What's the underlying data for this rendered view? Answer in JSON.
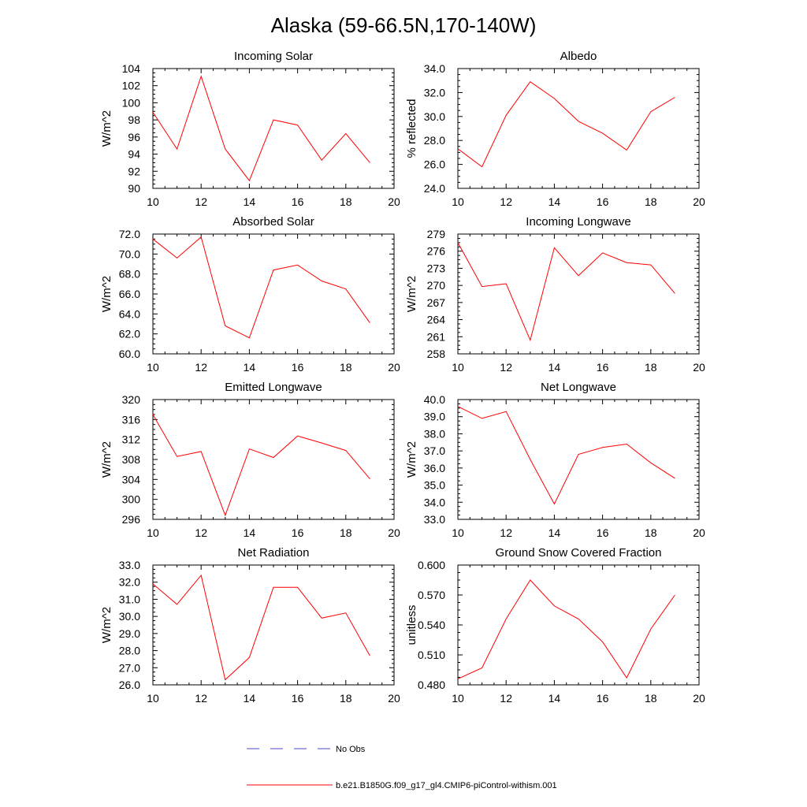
{
  "figure": {
    "title": "Alaska (59-66.5N,170-140W)"
  },
  "legend": {
    "items": [
      {
        "label": "No Obs",
        "color": "#4a4acd",
        "dash": true
      },
      {
        "label": "b.e21.B1850G.f09_g17_gl4.CMIP6-piControl-withism.001",
        "color": "#ff0000",
        "dash": false
      }
    ]
  },
  "chart_data": [
    {
      "type": "line",
      "title": "Incoming Solar",
      "xlabel": "",
      "ylabel": "W/m^2",
      "xlim": [
        10,
        20
      ],
      "ylim": [
        90,
        104
      ],
      "xticks": [
        "10",
        "12",
        "14",
        "16",
        "18",
        "20"
      ],
      "yticks": [
        "90",
        "92",
        "94",
        "96",
        "98",
        "100",
        "102",
        "104"
      ],
      "series": [
        {
          "color": "#ff0000",
          "x": [
            10,
            11,
            12,
            13,
            14,
            15,
            16,
            17,
            18,
            19
          ],
          "y": [
            98.9,
            94.6,
            103.1,
            94.6,
            90.9,
            98.0,
            97.4,
            93.3,
            96.4,
            93.0
          ]
        }
      ]
    },
    {
      "type": "line",
      "title": "Albedo",
      "xlabel": "",
      "ylabel": "% reflected",
      "xlim": [
        10,
        20
      ],
      "ylim": [
        24,
        34
      ],
      "xticks": [
        "10",
        "12",
        "14",
        "16",
        "18",
        "20"
      ],
      "yticks": [
        "24.0",
        "26.0",
        "28.0",
        "30.0",
        "32.0",
        "34.0"
      ],
      "series": [
        {
          "color": "#ff0000",
          "x": [
            10,
            11,
            12,
            13,
            14,
            15,
            16,
            17,
            18,
            19
          ],
          "y": [
            27.3,
            25.8,
            30.1,
            32.9,
            31.5,
            29.6,
            28.6,
            27.2,
            30.4,
            31.6
          ]
        }
      ]
    },
    {
      "type": "line",
      "title": "Absorbed Solar",
      "xlabel": "",
      "ylabel": "W/m^2",
      "xlim": [
        10,
        20
      ],
      "ylim": [
        60,
        72
      ],
      "xticks": [
        "10",
        "12",
        "14",
        "16",
        "18",
        "20"
      ],
      "yticks": [
        "60.0",
        "62.0",
        "64.0",
        "66.0",
        "68.0",
        "70.0",
        "72.0"
      ],
      "series": [
        {
          "color": "#ff0000",
          "x": [
            10,
            11,
            12,
            13,
            14,
            15,
            16,
            17,
            18,
            19
          ],
          "y": [
            71.5,
            69.6,
            71.7,
            62.8,
            61.6,
            68.4,
            68.9,
            67.3,
            66.5,
            63.1
          ]
        }
      ]
    },
    {
      "type": "line",
      "title": "Incoming Longwave",
      "xlabel": "",
      "ylabel": "W/m^2",
      "xlim": [
        10,
        20
      ],
      "ylim": [
        258,
        279
      ],
      "xticks": [
        "10",
        "12",
        "14",
        "16",
        "18",
        "20"
      ],
      "yticks": [
        "258",
        "261",
        "264",
        "267",
        "270",
        "273",
        "276",
        "279"
      ],
      "series": [
        {
          "color": "#ff0000",
          "x": [
            10,
            11,
            12,
            13,
            14,
            15,
            16,
            17,
            18,
            19
          ],
          "y": [
            277.5,
            269.8,
            270.3,
            260.4,
            276.6,
            271.7,
            275.7,
            274.0,
            273.6,
            268.6
          ]
        }
      ]
    },
    {
      "type": "line",
      "title": "Emitted Longwave",
      "xlabel": "",
      "ylabel": "W/m^2",
      "xlim": [
        10,
        20
      ],
      "ylim": [
        296,
        320
      ],
      "xticks": [
        "10",
        "12",
        "14",
        "16",
        "18",
        "20"
      ],
      "yticks": [
        "296",
        "300",
        "304",
        "308",
        "312",
        "316",
        "320"
      ],
      "series": [
        {
          "color": "#ff0000",
          "x": [
            10,
            11,
            12,
            13,
            14,
            15,
            16,
            17,
            18,
            19
          ],
          "y": [
            317.0,
            308.6,
            309.6,
            296.8,
            310.1,
            308.4,
            312.7,
            311.3,
            309.8,
            304.1
          ]
        }
      ]
    },
    {
      "type": "line",
      "title": "Net Longwave",
      "xlabel": "",
      "ylabel": "W/m^2",
      "xlim": [
        10,
        20
      ],
      "ylim": [
        33,
        40
      ],
      "xticks": [
        "10",
        "12",
        "14",
        "16",
        "18",
        "20"
      ],
      "yticks": [
        "33.0",
        "34.0",
        "35.0",
        "36.0",
        "37.0",
        "38.0",
        "39.0",
        "40.0"
      ],
      "series": [
        {
          "color": "#ff0000",
          "x": [
            10,
            11,
            12,
            13,
            14,
            15,
            16,
            17,
            18,
            19
          ],
          "y": [
            39.6,
            38.9,
            39.3,
            36.5,
            33.9,
            36.8,
            37.2,
            37.4,
            36.3,
            35.4
          ]
        }
      ]
    },
    {
      "type": "line",
      "title": "Net Radiation",
      "xlabel": "",
      "ylabel": "W/m^2",
      "xlim": [
        10,
        20
      ],
      "ylim": [
        26,
        33
      ],
      "xticks": [
        "10",
        "12",
        "14",
        "16",
        "18",
        "20"
      ],
      "yticks": [
        "26.0",
        "27.0",
        "28.0",
        "29.0",
        "30.0",
        "31.0",
        "32.0",
        "33.0"
      ],
      "series": [
        {
          "color": "#ff0000",
          "x": [
            10,
            11,
            12,
            13,
            14,
            15,
            16,
            17,
            18,
            19
          ],
          "y": [
            31.9,
            30.7,
            32.4,
            26.3,
            27.6,
            31.7,
            31.7,
            29.9,
            30.2,
            27.7
          ]
        }
      ]
    },
    {
      "type": "line",
      "title": "Ground Snow Covered Fraction",
      "xlabel": "",
      "ylabel": "unitless",
      "xlim": [
        10,
        20
      ],
      "ylim": [
        0.48,
        0.6
      ],
      "xticks": [
        "10",
        "12",
        "14",
        "16",
        "18",
        "20"
      ],
      "yticks": [
        "0.480",
        "0.510",
        "0.540",
        "0.570",
        "0.600"
      ],
      "series": [
        {
          "color": "#ff0000",
          "x": [
            10,
            11,
            12,
            13,
            14,
            15,
            16,
            17,
            18,
            19
          ],
          "y": [
            0.486,
            0.497,
            0.546,
            0.585,
            0.559,
            0.546,
            0.523,
            0.487,
            0.536,
            0.57
          ]
        }
      ]
    }
  ]
}
